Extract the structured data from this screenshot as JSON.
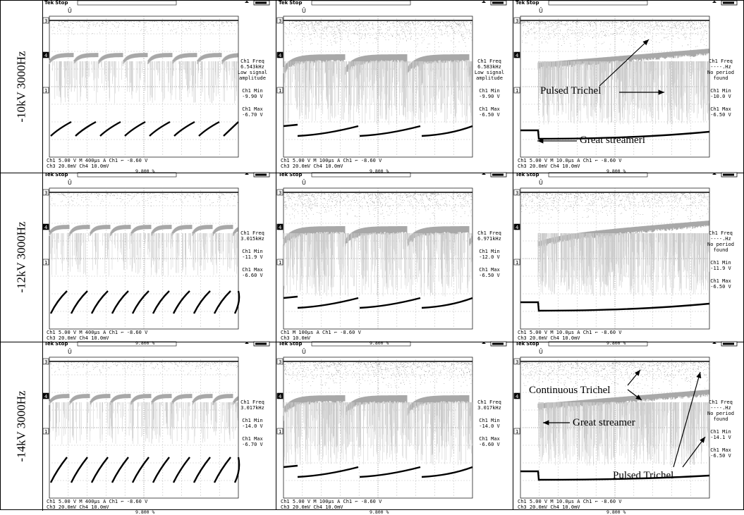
{
  "row_labels": [
    "-10kV 3000Hz",
    "-12kV 3000Hz",
    "-14kV 3000Hz"
  ],
  "header": {
    "tek": "Tek",
    "state": "Stop"
  },
  "markers": {
    "ch3": "3",
    "ch4": "4",
    "ch1": "1"
  },
  "panels": [
    {
      "meas": [
        "Ch1 Freq",
        "6.543kHz",
        "Low signal",
        "amplitude",
        "Ch1 Min",
        "-9.90 V",
        "Ch1 Max",
        "-6.70 V"
      ],
      "b1": "Ch1   5.00 V                M 400µs  A  Ch1 ⌐ -8.60 V",
      "b2": "Ch3  20.0mV  Ch4  10.0mV",
      "pct": "9.800 %"
    },
    {
      "meas": [
        "Ch1 Freq",
        "6.583kHz",
        "Low signal",
        "amplitude",
        "Ch1 Min",
        "-9.90 V",
        "Ch1 Max",
        "-6.50 V"
      ],
      "b1": "Ch1   5.00 V                M 100µs  A  Ch1 ⌐ -8.60 V",
      "b2": "Ch3  20.0mV  Ch4  10.0mV",
      "pct": "9.800 %"
    },
    {
      "meas": [
        "Ch1 Freq",
        "----.Hz",
        "No period",
        "found",
        "Ch1 Min",
        "-10.0 V",
        "Ch1 Max",
        "-6.50 V"
      ],
      "b1": "Ch1   5.00 V                M 10.0µs  A  Ch1 ⌐ -8.60 V",
      "b2": "Ch3  20.0mV  Ch4  10.0mV",
      "pct": "9.800 %"
    },
    {
      "meas": [
        "Ch1 Freq",
        "3.015kHz",
        "",
        "",
        "Ch1 Min",
        "-11.9 V",
        "Ch1 Max",
        "-6.60 V"
      ],
      "b1": "Ch1   5.00 V                M 400µs  A  Ch1 ⌐ -8.60 V",
      "b2": "Ch3  20.0mV  Ch4  10.0mV",
      "pct": "9.800 %"
    },
    {
      "meas": [
        "Ch1 Freq",
        "6.971kHz",
        "",
        "",
        "Ch1 Min",
        "-12.0 V",
        "Ch1 Max",
        "-6.50 V"
      ],
      "b1": "Ch1                          M 100µs  A  Ch1 ⌐ -8.60 V",
      "b2": "Ch3              10.0mV",
      "pct": "9.800 %"
    },
    {
      "meas": [
        "Ch1 Freq",
        "----.Hz",
        "No period",
        "found",
        "Ch1 Min",
        "-11.9 V",
        "Ch1 Max",
        "-6.50 V"
      ],
      "b1": "Ch1   5.00 V                M 10.0µs  A  Ch1 ⌐ -8.60 V",
      "b2": "Ch3  20.0mV  Ch4  10.0mV",
      "pct": "9.800 %"
    },
    {
      "meas": [
        "Ch1 Freq",
        "3.017kHz",
        "",
        "",
        "Ch1 Min",
        "-14.0 V",
        "Ch1 Max",
        "-6.70 V"
      ],
      "b1": "Ch1   5.00 V                M 400µs  A  Ch1 ⌐ -8.60 V",
      "b2": "Ch3  20.0mV  Ch4  10.0mV",
      "pct": "9.800 %"
    },
    {
      "meas": [
        "Ch1 Freq",
        "3.017kHz",
        "",
        "",
        "Ch1 Min",
        "-14.0 V",
        "Ch1 Max",
        "-6.60 V"
      ],
      "b1": "Ch1   5.00 V                M 100µs  A  Ch1 ⌐ -8.60 V",
      "b2": "Ch3  20.0mV  Ch4  10.0mV",
      "pct": "9.800 %"
    },
    {
      "meas": [
        "Ch1 Freq",
        "----.Hz",
        "No period",
        "found",
        "Ch1 Min",
        "-14.1 V",
        "Ch1 Max",
        "-6.50 V"
      ],
      "b1": "Ch1   5.00 V                M 10.0µs  A  Ch1 ⌐ -8.60 V",
      "b2": "Ch3  20.0mV  Ch4  10.0mV",
      "pct": "9.800 %"
    }
  ],
  "annotations": {
    "pulsed_trichel_top": "Pulsed Trichel",
    "great_streamerl": "Great streamerl",
    "continuous_trichel": "Continuous Trichel",
    "great_streamer": "Great streamer",
    "pulsed_trichel_bottom": "Pulsed Trichel"
  },
  "colors": {
    "trace": "#000000",
    "halo": "#9a9a9a",
    "grid": "#444444"
  }
}
